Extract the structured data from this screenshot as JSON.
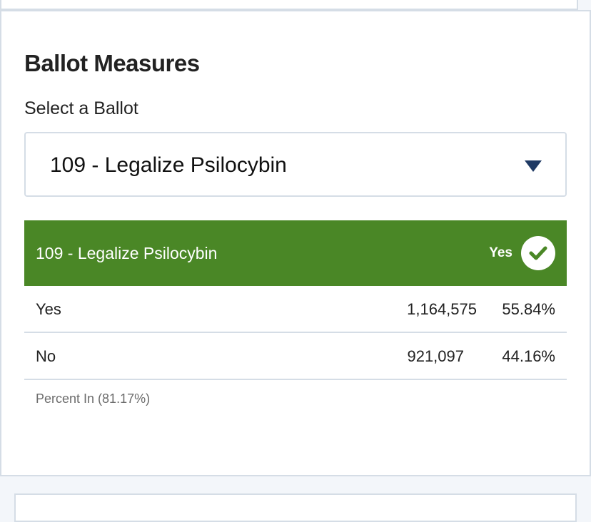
{
  "panel": {
    "title": "Ballot Measures",
    "select_label": "Select a Ballot",
    "selected_ballot": "109 - Legalize Psilocybin"
  },
  "result": {
    "title": "109 - Legalize Psilocybin",
    "winner": "Yes",
    "header_color": "#4a8726",
    "rows": [
      {
        "choice": "Yes",
        "votes": "1,164,575",
        "percent": "55.84%"
      },
      {
        "choice": "No",
        "votes": "921,097",
        "percent": "44.16%"
      }
    ],
    "percent_in": "Percent In (81.17%)"
  },
  "icons": {
    "dropdown": "triangle-down-icon",
    "winner": "checkmark-circle-icon"
  }
}
